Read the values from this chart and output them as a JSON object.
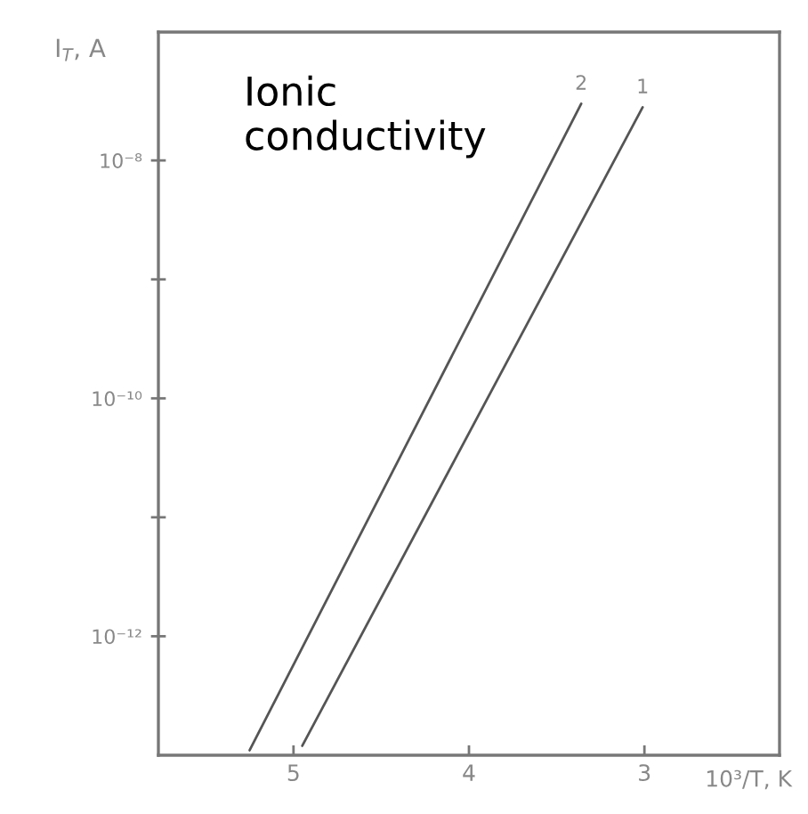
{
  "chart_data": {
    "type": "line",
    "ylabel": "I$_{T}$, A",
    "xlabel": "10³/T, K",
    "annotations": [
      "Ionic\nconductivity"
    ],
    "series": [
      {
        "name": "2",
        "color": "#555555",
        "x": [
          5.25,
          3.36
        ],
        "values": [
          1.1e-13,
          3e-08
        ]
      },
      {
        "name": "1",
        "color": "#555555",
        "x": [
          4.95,
          3.01
        ],
        "values": [
          1.2e-13,
          2.8e-08
        ]
      }
    ],
    "log": "y",
    "xlim": [
      5.77,
      2.23
    ],
    "xticks": [
      5,
      4,
      3
    ],
    "ylim": [
      1e-13,
      1.2e-07
    ],
    "yticks": [
      {
        "value": 1e-08,
        "label": "10⁻⁸"
      },
      {
        "value": 1e-09,
        "label": null
      },
      {
        "value": 1e-10,
        "label": "10⁻¹⁰"
      },
      {
        "value": 1e-11,
        "label": null
      },
      {
        "value": 1e-12,
        "label": "10⁻¹²"
      }
    ]
  }
}
